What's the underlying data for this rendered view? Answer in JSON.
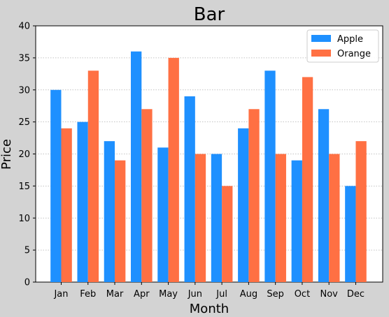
{
  "chart_data": {
    "type": "bar",
    "title": "Bar",
    "xlabel": "Month",
    "ylabel": "Price",
    "categories": [
      "Jan",
      "Feb",
      "Mar",
      "Apr",
      "May",
      "Jun",
      "Jul",
      "Aug",
      "Sep",
      "Oct",
      "Nov",
      "Dec"
    ],
    "series": [
      {
        "name": "Apple",
        "color": "#1e90ff",
        "values": [
          30,
          25,
          22,
          36,
          21,
          29,
          20,
          24,
          33,
          19,
          27,
          15
        ]
      },
      {
        "name": "Orange",
        "color": "#ff7043",
        "values": [
          24,
          33,
          19,
          27,
          35,
          20,
          15,
          27,
          20,
          32,
          20,
          22
        ]
      }
    ],
    "ylim": [
      0,
      40
    ],
    "yticks": [
      0,
      5,
      10,
      15,
      20,
      25,
      30,
      35,
      40
    ],
    "grid": "y-dotted",
    "legend_position": "top-right"
  }
}
